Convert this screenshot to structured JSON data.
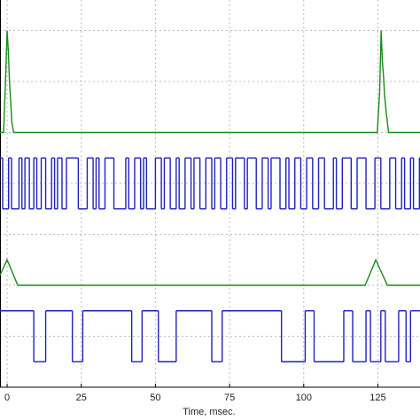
{
  "chart_data": {
    "type": "line",
    "xlabel": "Time, msec.",
    "xlim": [
      -2.4,
      139.2
    ],
    "xticks": [
      0,
      25,
      50,
      75,
      100,
      125
    ],
    "ylim": [
      0,
      7.6
    ],
    "yticks": [
      1,
      2,
      3,
      4,
      5,
      6,
      7
    ],
    "grid": true,
    "series": [
      {
        "color": "#1a8a1a",
        "step": false,
        "x": [
          -2.4,
          -1.2,
          -0.6,
          0.0,
          0.4,
          0.8,
          1.2,
          1.6,
          2.2,
          124.8,
          125.6,
          126.1,
          126.5,
          126.9,
          127.3,
          127.8,
          128.6,
          139.2
        ],
        "values": [
          5.0,
          5.0,
          5.9,
          7.0,
          6.6,
          6.0,
          5.6,
          5.2,
          5.0,
          5.0,
          5.8,
          7.0,
          6.4,
          6.1,
          5.7,
          5.4,
          5.0,
          5.0
        ]
      },
      {
        "color": "#2020c0",
        "step": true,
        "x": [
          -2.4,
          -1.5,
          0.5,
          1.5,
          4,
          5,
          6,
          7.5,
          9,
          10,
          11.5,
          13,
          15,
          16,
          17,
          18.5,
          20,
          24,
          27,
          29,
          30,
          31,
          33,
          36,
          40,
          41,
          43,
          45,
          46,
          47,
          50,
          52,
          53,
          55,
          57,
          58,
          60,
          62,
          63,
          65,
          67,
          69,
          70,
          72,
          74,
          76,
          77,
          80,
          81,
          84,
          86,
          88,
          89,
          92,
          94,
          95,
          97,
          99,
          101,
          103,
          105,
          107,
          110,
          111,
          113,
          116,
          118,
          121,
          124,
          126,
          129,
          131,
          133,
          134,
          136,
          137,
          139
        ],
        "values": [
          4.5,
          3.5,
          4.5,
          3.5,
          4.5,
          3.5,
          4.5,
          3.5,
          4.5,
          3.5,
          4.5,
          3.5,
          4.5,
          3.5,
          4.5,
          3.5,
          4.5,
          3.5,
          4.5,
          3.5,
          4.5,
          3.5,
          4.5,
          3.5,
          4.5,
          3.5,
          4.5,
          3.5,
          4.5,
          3.5,
          4.5,
          3.5,
          4.5,
          3.5,
          4.5,
          3.5,
          4.5,
          3.5,
          4.5,
          3.5,
          4.5,
          3.5,
          4.5,
          3.5,
          4.5,
          3.5,
          4.5,
          3.5,
          4.5,
          3.5,
          4.5,
          3.5,
          4.5,
          3.5,
          4.5,
          3.5,
          4.5,
          3.5,
          4.5,
          3.5,
          4.5,
          3.5,
          4.5,
          3.5,
          4.5,
          3.5,
          4.5,
          3.5,
          4.5,
          3.5,
          4.5,
          3.5,
          4.5,
          3.5,
          4.5,
          3.5,
          4.5
        ]
      },
      {
        "color": "#1a8a1a",
        "step": false,
        "x": [
          -2.4,
          0.0,
          3.6,
          120.7,
          124.3,
          128.2,
          139.2
        ],
        "values": [
          2.2,
          2.5,
          2.0,
          2.0,
          2.5,
          2.0,
          2.0
        ]
      },
      {
        "color": "#2020c0",
        "step": true,
        "x": [
          -2.4,
          9,
          13,
          22,
          25.5,
          42,
          45.5,
          51,
          57,
          69,
          72.5,
          92.5,
          100.5,
          103.5,
          113.5,
          116.5,
          121,
          122.5,
          126,
          127.5,
          132,
          134.5,
          136
        ],
        "values": [
          1.5,
          0.5,
          1.5,
          0.5,
          1.5,
          0.5,
          1.5,
          0.5,
          1.5,
          0.5,
          1.5,
          0.5,
          1.5,
          0.5,
          1.5,
          0.5,
          1.5,
          0.5,
          1.5,
          0.5,
          1.5,
          0.5,
          1.5
        ]
      }
    ]
  }
}
